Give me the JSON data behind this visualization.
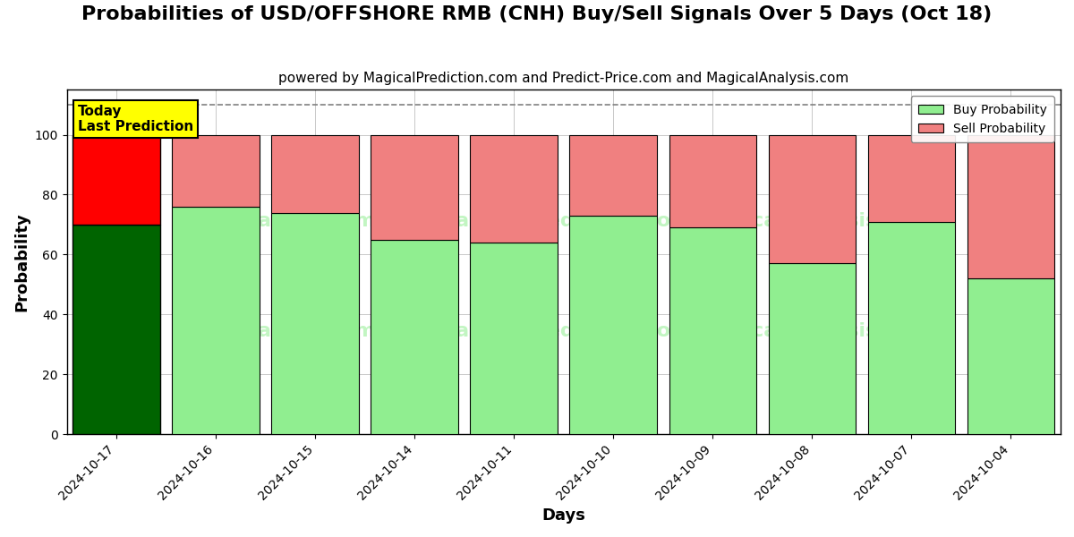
{
  "title": "Probabilities of USD/OFFSHORE RMB (CNH) Buy/Sell Signals Over 5 Days (Oct 18)",
  "subtitle": "powered by MagicalPrediction.com and Predict-Price.com and MagicalAnalysis.com",
  "xlabel": "Days",
  "ylabel": "Probability",
  "categories": [
    "2024-10-17",
    "2024-10-16",
    "2024-10-15",
    "2024-10-14",
    "2024-10-11",
    "2024-10-10",
    "2024-10-09",
    "2024-10-08",
    "2024-10-07",
    "2024-10-04"
  ],
  "buy_values": [
    70,
    76,
    74,
    65,
    64,
    73,
    69,
    57,
    71,
    52
  ],
  "sell_values": [
    30,
    24,
    26,
    35,
    36,
    27,
    31,
    43,
    29,
    48
  ],
  "today_buy_color": "#006400",
  "today_sell_color": "#FF0000",
  "buy_color": "#90EE90",
  "sell_color": "#F08080",
  "today_label": "Today\nLast Prediction",
  "today_label_bg": "#FFFF00",
  "dashed_line_y": 110,
  "ylim": [
    0,
    115
  ],
  "yticks": [
    0,
    20,
    40,
    60,
    80,
    100
  ],
  "legend_buy_color": "#90EE90",
  "legend_sell_color": "#F08080",
  "background_color": "#ffffff",
  "title_fontsize": 16,
  "subtitle_fontsize": 11,
  "axis_label_fontsize": 13,
  "tick_fontsize": 10,
  "bar_width": 0.88
}
